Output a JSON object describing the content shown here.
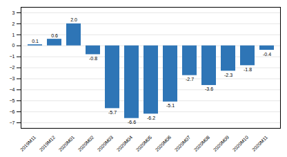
{
  "chart_data": {
    "type": "bar",
    "categories": [
      "2019M11",
      "2019M12",
      "2020M01",
      "2020M02",
      "2020M03",
      "2020M04",
      "2020M05",
      "2020M06",
      "2020M07",
      "2020M08",
      "2020M09",
      "2020M10",
      "2020M11"
    ],
    "values": [
      0.1,
      0.6,
      2.0,
      -0.8,
      -5.7,
      -6.6,
      -6.2,
      -5.1,
      -2.7,
      -3.6,
      -2.3,
      -1.8,
      -0.4
    ],
    "value_labels": [
      "0.1",
      "0.6",
      "2.0",
      "-0.8",
      "-5.7",
      "-6.6",
      "-6.2",
      "-5.1",
      "-2.7",
      "-3.6",
      "-2.3",
      "-1.8",
      "-0.4"
    ],
    "color": "#2E75B6",
    "ylim": [
      -7.5,
      3.5
    ],
    "yticks": [
      -7,
      -6,
      -5,
      -4,
      -3,
      -2,
      -1,
      0,
      1,
      2,
      3
    ],
    "grid": true,
    "data_labels": true
  }
}
